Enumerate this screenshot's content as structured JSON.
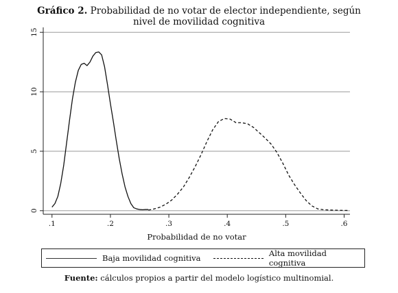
{
  "title": {
    "bold": "Gráfico 2.",
    "line1": "Probabilidad de no votar de elector independiente, según",
    "line2": "nivel de movilidad cognitiva"
  },
  "source": {
    "bold": "Fuente:",
    "text": "cálculos propios a partir del modelo logístico multinomial."
  },
  "chart_data": {
    "type": "line",
    "xlabel": "Probabilidad de no votar",
    "ylabel": "",
    "xlim": [
      0.085,
      0.61
    ],
    "ylim": [
      -0.3,
      15.3
    ],
    "x_ticks": [
      {
        "value": 0.1,
        "label": ".1"
      },
      {
        "value": 0.2,
        "label": ".2"
      },
      {
        "value": 0.3,
        "label": ".3"
      },
      {
        "value": 0.4,
        "label": ".4"
      },
      {
        "value": 0.5,
        "label": ".5"
      },
      {
        "value": 0.6,
        "label": ".6"
      }
    ],
    "y_ticks": [
      {
        "value": 0,
        "label": "0"
      },
      {
        "value": 5,
        "label": "5"
      },
      {
        "value": 10,
        "label": "10"
      },
      {
        "value": 15,
        "label": "15"
      }
    ],
    "grid": true,
    "legend_position": "bottom",
    "series": [
      {
        "name": "Baja movilidad cognitiva",
        "style": "solid",
        "color": "#111111",
        "points": [
          [
            0.1,
            0.3
          ],
          [
            0.105,
            0.6
          ],
          [
            0.11,
            1.2
          ],
          [
            0.115,
            2.3
          ],
          [
            0.12,
            3.8
          ],
          [
            0.125,
            5.7
          ],
          [
            0.13,
            7.6
          ],
          [
            0.135,
            9.4
          ],
          [
            0.14,
            10.8
          ],
          [
            0.145,
            11.8
          ],
          [
            0.15,
            12.3
          ],
          [
            0.155,
            12.4
          ],
          [
            0.16,
            12.2
          ],
          [
            0.165,
            12.5
          ],
          [
            0.17,
            13.0
          ],
          [
            0.175,
            13.3
          ],
          [
            0.18,
            13.35
          ],
          [
            0.185,
            13.1
          ],
          [
            0.19,
            12.1
          ],
          [
            0.195,
            10.6
          ],
          [
            0.2,
            9.0
          ],
          [
            0.205,
            7.5
          ],
          [
            0.21,
            5.9
          ],
          [
            0.215,
            4.4
          ],
          [
            0.22,
            3.1
          ],
          [
            0.225,
            2.0
          ],
          [
            0.23,
            1.2
          ],
          [
            0.235,
            0.6
          ],
          [
            0.24,
            0.25
          ],
          [
            0.245,
            0.15
          ],
          [
            0.25,
            0.1
          ],
          [
            0.255,
            0.08
          ],
          [
            0.26,
            0.1
          ],
          [
            0.265,
            0.1
          ]
        ]
      },
      {
        "name": "Alta movilidad cognitiva",
        "style": "dashed",
        "color": "#111111",
        "points": [
          [
            0.265,
            0.05
          ],
          [
            0.275,
            0.15
          ],
          [
            0.285,
            0.3
          ],
          [
            0.295,
            0.55
          ],
          [
            0.305,
            0.9
          ],
          [
            0.315,
            1.4
          ],
          [
            0.325,
            2.0
          ],
          [
            0.335,
            2.8
          ],
          [
            0.345,
            3.7
          ],
          [
            0.355,
            4.7
          ],
          [
            0.365,
            5.8
          ],
          [
            0.375,
            6.8
          ],
          [
            0.385,
            7.5
          ],
          [
            0.395,
            7.75
          ],
          [
            0.405,
            7.7
          ],
          [
            0.415,
            7.4
          ],
          [
            0.425,
            7.4
          ],
          [
            0.435,
            7.3
          ],
          [
            0.445,
            7.0
          ],
          [
            0.455,
            6.55
          ],
          [
            0.465,
            6.1
          ],
          [
            0.475,
            5.6
          ],
          [
            0.485,
            4.9
          ],
          [
            0.495,
            4.0
          ],
          [
            0.505,
            3.0
          ],
          [
            0.515,
            2.2
          ],
          [
            0.525,
            1.5
          ],
          [
            0.535,
            0.85
          ],
          [
            0.545,
            0.4
          ],
          [
            0.555,
            0.15
          ],
          [
            0.565,
            0.08
          ],
          [
            0.58,
            0.05
          ],
          [
            0.595,
            0.03
          ],
          [
            0.607,
            0.02
          ]
        ]
      }
    ]
  }
}
